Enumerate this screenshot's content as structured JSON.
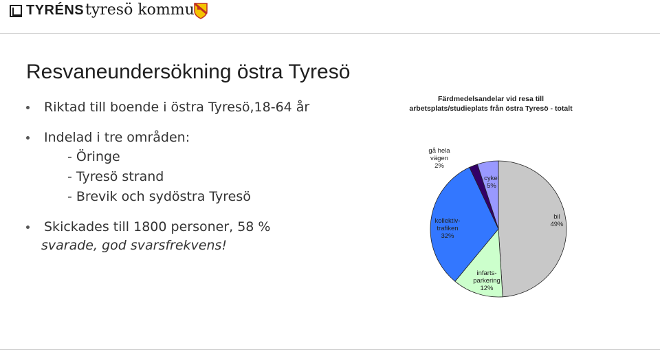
{
  "header": {
    "logo_tyrens": "TYRÉNS",
    "logo_kommun": "tyresö kommun"
  },
  "slide": {
    "title": "Resvaneundersökning östra Tyresö",
    "bullets": [
      {
        "text": "Riktad till boende i östra Tyresö,18-64 år"
      },
      {
        "text": "Indelad i tre områden:",
        "sub": [
          "- Öringe",
          "- Tyresö strand",
          "- Brevik och sydöstra Tyresö"
        ]
      },
      {
        "text": "Skickades till 1800 personer, 58 %",
        "cont": "svarade, god svarsfrekvens!"
      }
    ]
  },
  "chart_data": {
    "type": "pie",
    "title_lines": [
      "Färdmedelsandelar vid resa till",
      "arbetsplats/studieplats från östra Tyresö - totalt"
    ],
    "slices": [
      {
        "label_lines": [
          "bil",
          "49%"
        ],
        "value": 49,
        "color": "#c8c8c8"
      },
      {
        "label_lines": [
          "infarts-",
          "parkering",
          "12%"
        ],
        "value": 12,
        "color": "#ccffcc"
      },
      {
        "label_lines": [
          "kollektiv-",
          "trafiken",
          "32%"
        ],
        "value": 32,
        "color": "#3377ff"
      },
      {
        "label_lines": [
          "gå hela",
          "vägen",
          "2%"
        ],
        "value": 2,
        "color": "#330066"
      },
      {
        "label_lines": [
          "cykel",
          "5%"
        ],
        "value": 5,
        "color": "#9999ff"
      }
    ]
  }
}
